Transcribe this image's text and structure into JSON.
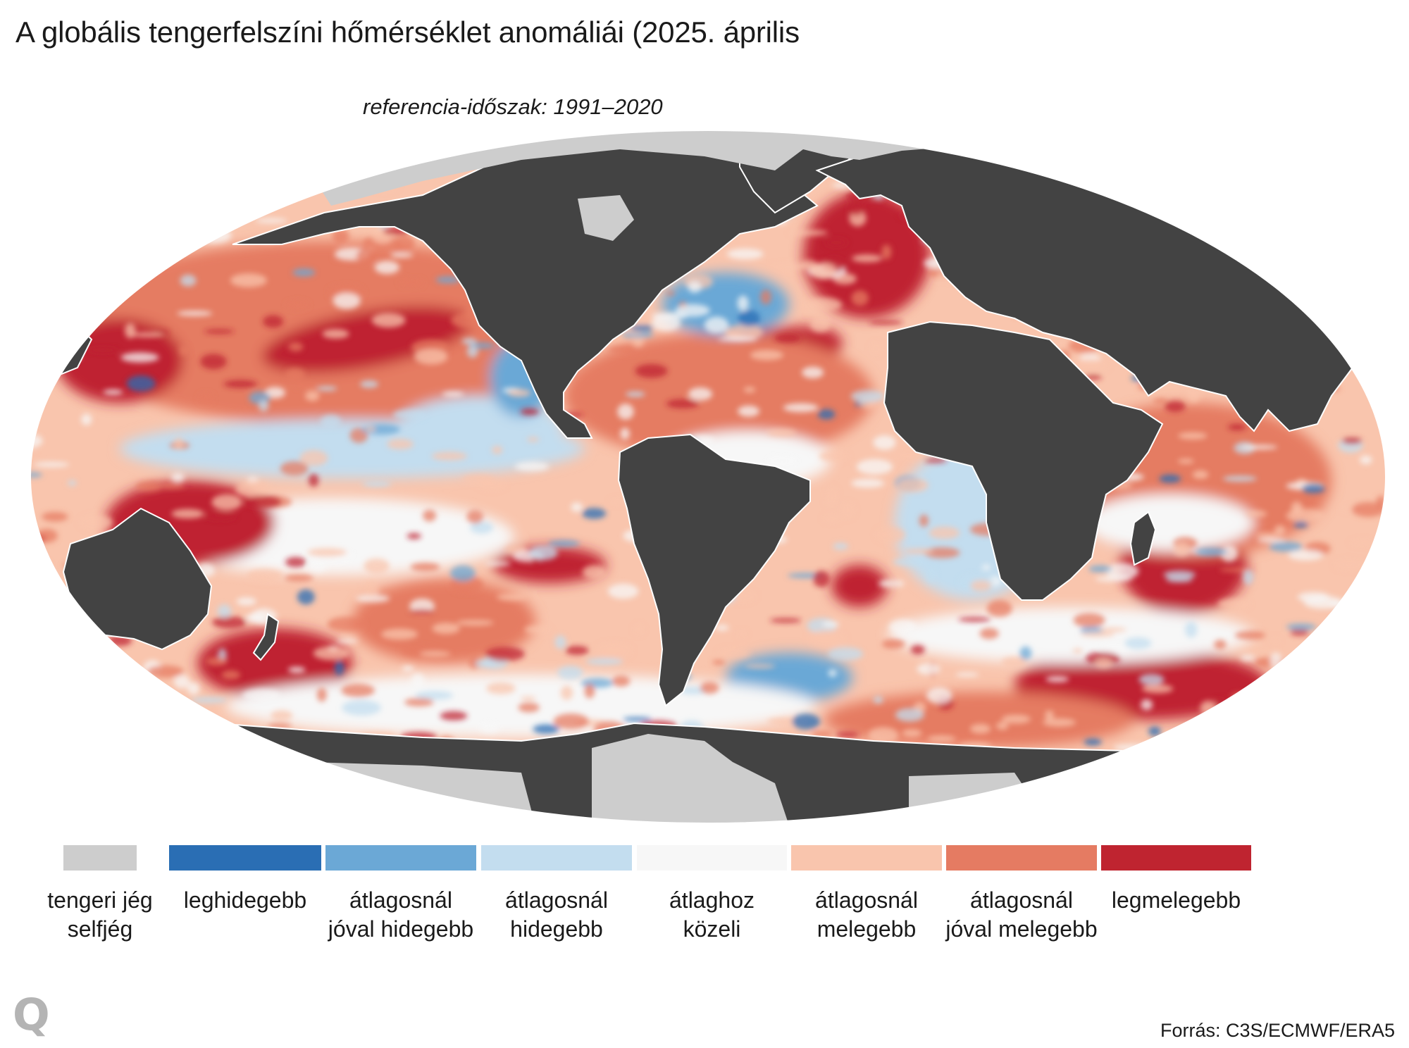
{
  "title": "A globális tengerfelszíni hőmérséklet anomáliái (2025. április",
  "subtitle": "referencia-időszak: 1991–2020",
  "legend": [
    {
      "label": "tengeri jég\nselfjég",
      "color": "#cdcdcd"
    },
    {
      "label": "leghidegebb",
      "color": "#2a6eb4"
    },
    {
      "label": "átlagosnál\njóval hidegebb",
      "color": "#6ba8d6"
    },
    {
      "label": "átlagosnál\nhidegebb",
      "color": "#c3ddef"
    },
    {
      "label": "átlaghoz\nközeli",
      "color": "#f7f7f7"
    },
    {
      "label": "átlagosnál\nmelegebb",
      "color": "#f9c5ad"
    },
    {
      "label": "átlagosnál\njóval melegebb",
      "color": "#e57b62"
    },
    {
      "label": "legmelegebb",
      "color": "#bf2430"
    }
  ],
  "land_color": "#434343",
  "logo": "Q",
  "source": "Forrás: C3S/ECMWF/ERA5"
}
